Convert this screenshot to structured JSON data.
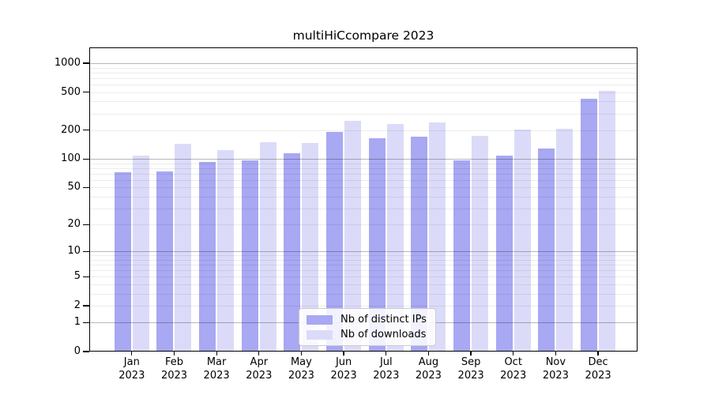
{
  "title": "multiHiCcompare 2023",
  "chart_data": {
    "type": "bar",
    "title": "multiHiCcompare 2023",
    "categories": [
      "Jan",
      "Feb",
      "Mar",
      "Apr",
      "May",
      "Jun",
      "Jul",
      "Aug",
      "Sep",
      "Oct",
      "Nov",
      "Dec"
    ],
    "category_year": "2023",
    "series": [
      {
        "name": "Nb of distinct IPs",
        "color": "#a8a8f3",
        "values": [
          72,
          74,
          93,
          96,
          115,
          193,
          166,
          170,
          96,
          108,
          129,
          430
        ]
      },
      {
        "name": "Nb of downloads",
        "color": "#dbdbf9",
        "values": [
          109,
          143,
          125,
          150,
          148,
          252,
          232,
          240,
          175,
          202,
          208,
          520
        ]
      }
    ],
    "xlabel": "",
    "ylabel": "",
    "yscale": "log1p",
    "yticks": [
      0,
      1,
      2,
      5,
      10,
      20,
      50,
      100,
      200,
      500,
      1000
    ],
    "ylim": [
      0,
      1430
    ],
    "grid": "horizontal; minor lines at 2-9 of each decade, major lines at 1, 10, 100, 1000",
    "legend_position": "lower center inside plot"
  },
  "legend": {
    "items": [
      {
        "label": "Nb of distinct IPs",
        "color": "#a8a8f3"
      },
      {
        "label": "Nb of downloads",
        "color": "#dbdbf9"
      }
    ]
  },
  "colors": {
    "background": "#ffffff",
    "bar_distinct_ips": "#a8a8f3",
    "bar_downloads": "#dbdbf9",
    "grid_minor": "#ededed",
    "grid_major": "#b5b5b5",
    "axis": "#000000",
    "legend_border": "#cccccc"
  }
}
